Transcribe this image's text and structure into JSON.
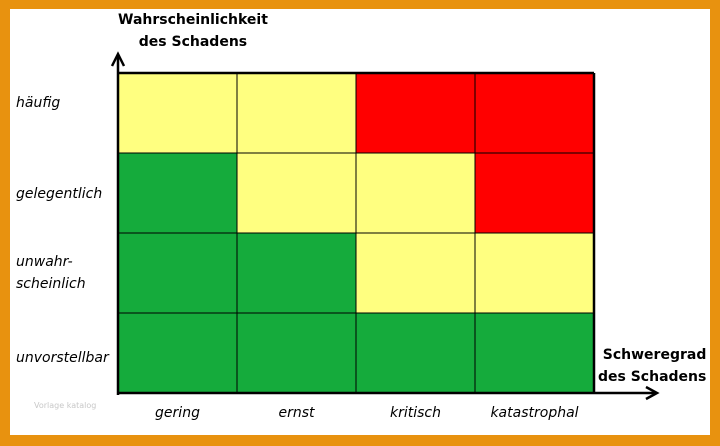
{
  "y_axis_title": [
    "Wahrscheinlichkeit",
    "des Schadens"
  ],
  "x_axis_title": [
    "Schweregrad",
    "des Schadens"
  ],
  "rows": [
    {
      "label": [
        "häufig"
      ],
      "cells": [
        "yellow",
        "yellow",
        "red",
        "red"
      ]
    },
    {
      "label": [
        "gelegentlich"
      ],
      "cells": [
        "green",
        "yellow",
        "yellow",
        "red"
      ]
    },
    {
      "label": [
        "unwahr-",
        "scheinlich"
      ],
      "cells": [
        "green",
        "green",
        "yellow",
        "yellow"
      ]
    },
    {
      "label": [
        "unvorstellbar"
      ],
      "cells": [
        "green",
        "green",
        "green",
        "green"
      ]
    }
  ],
  "columns": [
    "gering",
    "ernst",
    "kritisch",
    "katastrophal"
  ],
  "colors": {
    "yellow": "#ffff80",
    "red": "#ff0000",
    "green": "#15ab3c",
    "background": "#e8920f"
  },
  "watermark": "Vorlage katalog"
}
